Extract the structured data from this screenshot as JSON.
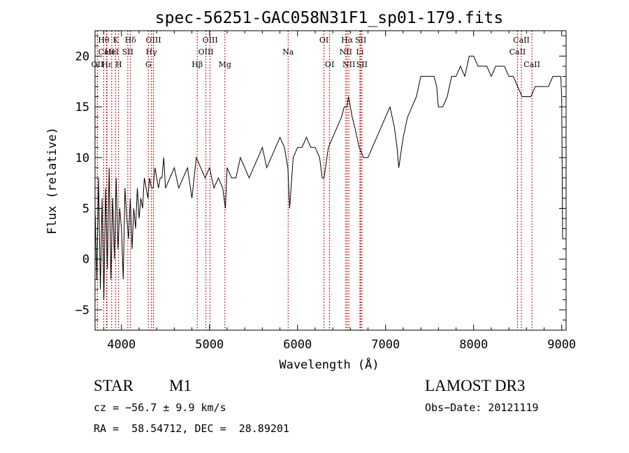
{
  "chart_data": {
    "type": "line",
    "title": "spec-56251-GAC058N31F1_sp01-179.fits",
    "xlabel": "Wavelength (Å)",
    "ylabel": "Flux (relative)",
    "xlim": [
      3700,
      9050
    ],
    "ylim": [
      -7,
      22.5
    ],
    "xticks": [
      4000,
      5000,
      6000,
      7000,
      8000,
      9000
    ],
    "xtick_labels": [
      "4000",
      "5000",
      "6000",
      "7000",
      "8000",
      "9000"
    ],
    "yticks": [
      -5,
      0,
      5,
      10,
      15,
      20
    ],
    "ytick_labels": [
      "−5",
      "0",
      "5",
      "10",
      "15",
      "20"
    ],
    "line_color": "#000000",
    "marker_color": "#cc0000",
    "spectrum": {
      "x": [
        3700,
        3720,
        3740,
        3760,
        3780,
        3800,
        3820,
        3840,
        3860,
        3880,
        3900,
        3920,
        3940,
        3960,
        3980,
        4000,
        4020,
        4040,
        4060,
        4080,
        4100,
        4120,
        4140,
        4160,
        4180,
        4200,
        4220,
        4240,
        4260,
        4280,
        4300,
        4320,
        4340,
        4360,
        4380,
        4400,
        4420,
        4440,
        4460,
        4480,
        4500,
        4550,
        4600,
        4650,
        4700,
        4750,
        4800,
        4850,
        4900,
        4950,
        5000,
        5050,
        5100,
        5150,
        5180,
        5200,
        5250,
        5300,
        5350,
        5400,
        5450,
        5500,
        5550,
        5600,
        5650,
        5700,
        5750,
        5800,
        5850,
        5890,
        5910,
        5950,
        6000,
        6050,
        6100,
        6150,
        6200,
        6250,
        6280,
        6300,
        6350,
        6400,
        6450,
        6500,
        6530,
        6560,
        6580,
        6600,
        6620,
        6650,
        6700,
        6750,
        6800,
        6850,
        6900,
        6950,
        7000,
        7050,
        7100,
        7130,
        7150,
        7200,
        7250,
        7300,
        7350,
        7400,
        7450,
        7500,
        7550,
        7580,
        7600,
        7650,
        7700,
        7750,
        7800,
        7850,
        7900,
        7950,
        8000,
        8050,
        8100,
        8150,
        8200,
        8250,
        8300,
        8350,
        8400,
        8450,
        8500,
        8550,
        8600,
        8650,
        8700,
        8750,
        8800,
        8850,
        8900,
        8950,
        8990,
        9000,
        9010
      ],
      "y": [
        5,
        -2,
        8,
        -3,
        6,
        -4,
        7,
        -1,
        9,
        -2,
        6,
        0,
        8,
        1,
        5,
        3,
        -2,
        7,
        4,
        2,
        6,
        1,
        5,
        3,
        7,
        4,
        6,
        5,
        8,
        7,
        6,
        8,
        7,
        7,
        9,
        8,
        7,
        8,
        8,
        10,
        7,
        8,
        9,
        7,
        8,
        9,
        6,
        10,
        9,
        8,
        9,
        7,
        8,
        7,
        5,
        9,
        8,
        8,
        10,
        9,
        8,
        9,
        10,
        11,
        9,
        10,
        11,
        12,
        11,
        9,
        5,
        10,
        11,
        11,
        12,
        11,
        11,
        10,
        8,
        8,
        11,
        12,
        13,
        14,
        15,
        15,
        16,
        15,
        14,
        13,
        11,
        10,
        10,
        11,
        12,
        13,
        14,
        15,
        13,
        11,
        9,
        12,
        14,
        15,
        16,
        18,
        18,
        18,
        18,
        17,
        15,
        15,
        16,
        18,
        18,
        19,
        18,
        20,
        20,
        19,
        19,
        19,
        18,
        19,
        19,
        19,
        18,
        18,
        17,
        16,
        16,
        16,
        17,
        17,
        17,
        17,
        18,
        18,
        18,
        16,
        2
      ]
    },
    "line_markers": [
      {
        "label": "Hθ",
        "x": 3798,
        "row": 1
      },
      {
        "label": "K",
        "x": 3934,
        "row": 1
      },
      {
        "label": "Hδ",
        "x": 4102,
        "row": 1
      },
      {
        "label": "OIII",
        "x": 4363,
        "row": 1
      },
      {
        "label": "OIII",
        "x": 5007,
        "row": 1
      },
      {
        "label": "OI",
        "x": 6300,
        "row": 1
      },
      {
        "label": "Hα",
        "x": 6563,
        "row": 1
      },
      {
        "label": "SII",
        "x": 6717,
        "row": 1
      },
      {
        "label": "CaII",
        "x": 8542,
        "row": 1
      },
      {
        "label": "CaII",
        "x": 3830,
        "row": 2
      },
      {
        "label": "HeI",
        "x": 3889,
        "row": 2
      },
      {
        "label": "SII",
        "x": 4072,
        "row": 2
      },
      {
        "label": "Hγ",
        "x": 4340,
        "row": 2
      },
      {
        "label": "OIII",
        "x": 4959,
        "row": 2
      },
      {
        "label": "Na",
        "x": 5893,
        "row": 2
      },
      {
        "label": "NII",
        "x": 6548,
        "row": 2
      },
      {
        "label": "Li",
        "x": 6708,
        "row": 2
      },
      {
        "label": "CaII",
        "x": 8498,
        "row": 2
      },
      {
        "label": "OII",
        "x": 3727,
        "row": 3
      },
      {
        "label": "Hε",
        "x": 3835,
        "row": 3
      },
      {
        "label": "H",
        "x": 3968,
        "row": 3
      },
      {
        "label": "G",
        "x": 4305,
        "row": 3
      },
      {
        "label": "Hβ",
        "x": 4861,
        "row": 3
      },
      {
        "label": "Mg",
        "x": 5175,
        "row": 3
      },
      {
        "label": "OI",
        "x": 6364,
        "row": 3
      },
      {
        "label": "NII",
        "x": 6583,
        "row": 3
      },
      {
        "label": "SII",
        "x": 6731,
        "row": 3
      },
      {
        "label": "CaII",
        "x": 8662,
        "row": 3
      }
    ]
  },
  "info": {
    "object_class": "STAR",
    "subclass": "M1",
    "survey": "LAMOST DR3",
    "redshift": "cz = −56.7 ± 9.9 km/s",
    "obs_date": "Obs−Date: 20121119",
    "coords": "RA =  58.54712, DEC =  28.89201"
  }
}
